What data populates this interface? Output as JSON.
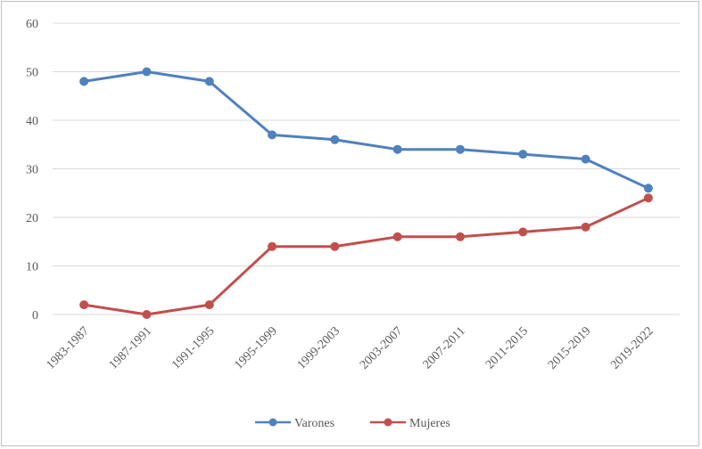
{
  "chart_data": {
    "type": "line",
    "title": "",
    "xlabel": "",
    "ylabel": "",
    "categories": [
      "1983-1987",
      "1987-1991",
      "1991-1995",
      "1995-1999",
      "1999-2003",
      "2003-2007",
      "2007-2011",
      "2011-2015",
      "2015-2019",
      "2019-2022"
    ],
    "ylim": [
      0,
      60
    ],
    "yticks": [
      0,
      10,
      20,
      30,
      40,
      50,
      60
    ],
    "grid": true,
    "legend_position": "bottom",
    "series": [
      {
        "name": "Varones",
        "color": "#4f81bd",
        "values": [
          48,
          50,
          48,
          37,
          36,
          34,
          34,
          33,
          32,
          26
        ]
      },
      {
        "name": "Mujeres",
        "color": "#c0504d",
        "values": [
          2,
          0,
          2,
          14,
          14,
          16,
          16,
          17,
          18,
          24
        ]
      }
    ]
  }
}
